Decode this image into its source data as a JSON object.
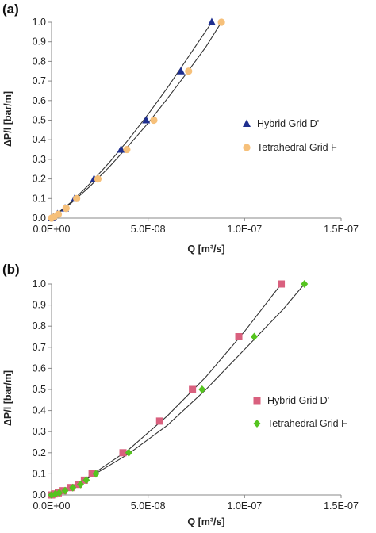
{
  "chart_data": [
    {
      "type": "scatter",
      "panel_label": "(a)",
      "xlabel": "Q [m³/s]",
      "ylabel": "ΔP/l [bar/m]",
      "xlim": [
        0,
        1.5e-07
      ],
      "ylim": [
        0,
        1.0
      ],
      "x_ticks": [
        "0.0E+00",
        "5.0E-08",
        "1.0E-07",
        "1.5E-07"
      ],
      "y_ticks": [
        "0.0",
        "0.1",
        "0.2",
        "0.3",
        "0.4",
        "0.5",
        "0.6",
        "0.7",
        "0.8",
        "0.9",
        "1.0"
      ],
      "grid": false,
      "legend_position": "right",
      "series": [
        {
          "name": "Hybrid Grid D'",
          "marker": "triangle",
          "color": "#1f2f8f",
          "points": [
            [
              0,
              0
            ],
            [
              1e-09,
              0.005
            ],
            [
              3e-09,
              0.02
            ],
            [
              7e-09,
              0.05
            ],
            [
              1.2e-08,
              0.1
            ],
            [
              2.2e-08,
              0.2
            ],
            [
              3.6e-08,
              0.35
            ],
            [
              4.9e-08,
              0.5
            ],
            [
              6.7e-08,
              0.75
            ],
            [
              8.3e-08,
              1.0
            ]
          ]
        },
        {
          "name": "Tetrahedral Grid F",
          "marker": "circle",
          "color": "#f6c07a",
          "points": [
            [
              0,
              0
            ],
            [
              1.2e-09,
              0.005
            ],
            [
              3.5e-09,
              0.02
            ],
            [
              7.5e-09,
              0.05
            ],
            [
              1.3e-08,
              0.1
            ],
            [
              2.4e-08,
              0.2
            ],
            [
              3.9e-08,
              0.35
            ],
            [
              5.3e-08,
              0.5
            ],
            [
              7.1e-08,
              0.75
            ],
            [
              8.8e-08,
              1.0
            ]
          ]
        }
      ],
      "fit_curves": [
        {
          "points": [
            [
              0,
              0
            ],
            [
              1e-08,
              0.08
            ],
            [
              2e-08,
              0.177
            ],
            [
              3e-08,
              0.285
            ],
            [
              4e-08,
              0.402
            ],
            [
              5e-08,
              0.53
            ],
            [
              6e-08,
              0.665
            ],
            [
              7e-08,
              0.81
            ],
            [
              8.3e-08,
              1.0
            ]
          ]
        },
        {
          "points": [
            [
              0,
              0
            ],
            [
              1e-08,
              0.075
            ],
            [
              2e-08,
              0.163
            ],
            [
              3e-08,
              0.262
            ],
            [
              4e-08,
              0.371
            ],
            [
              5e-08,
              0.485
            ],
            [
              6e-08,
              0.61
            ],
            [
              7e-08,
              0.74
            ],
            [
              8e-08,
              0.875
            ],
            [
              8.8e-08,
              1.0
            ]
          ]
        }
      ]
    },
    {
      "type": "scatter",
      "panel_label": "(b)",
      "xlabel": "Q [m³/s]",
      "ylabel": "ΔP/l [bar/m]",
      "xlim": [
        0,
        1.5e-07
      ],
      "ylim": [
        0,
        1.0
      ],
      "x_ticks": [
        "0.0E+00",
        "5.0E-08",
        "1.0E-07",
        "1.5E-07"
      ],
      "y_ticks": [
        "0.0",
        "0.1",
        "0.2",
        "0.3",
        "0.4",
        "0.5",
        "0.6",
        "0.7",
        "0.8",
        "0.9",
        "1.0"
      ],
      "grid": false,
      "legend_position": "right",
      "series": [
        {
          "name": "Hybrid Grid D'",
          "marker": "square",
          "color": "#d9607e",
          "points": [
            [
              0,
              0
            ],
            [
              1.5e-09,
              0.005
            ],
            [
              3.5e-09,
              0.01
            ],
            [
              6e-09,
              0.02
            ],
            [
              1e-08,
              0.035
            ],
            [
              1.4e-08,
              0.05
            ],
            [
              1.7e-08,
              0.07
            ],
            [
              2.1e-08,
              0.1
            ],
            [
              3.7e-08,
              0.2
            ],
            [
              5.6e-08,
              0.35
            ],
            [
              7.3e-08,
              0.5
            ],
            [
              9.7e-08,
              0.75
            ],
            [
              1.19e-07,
              1.0
            ]
          ]
        },
        {
          "name": "Tetrahedral Grid F",
          "marker": "diamond",
          "color": "#55c41f",
          "points": [
            [
              0,
              0
            ],
            [
              2e-09,
              0.005
            ],
            [
              4e-09,
              0.01
            ],
            [
              7e-09,
              0.02
            ],
            [
              1.1e-08,
              0.035
            ],
            [
              1.5e-08,
              0.05
            ],
            [
              1.8e-08,
              0.07
            ],
            [
              2.3e-08,
              0.1
            ],
            [
              4e-08,
              0.2
            ],
            [
              7.8e-08,
              0.5
            ],
            [
              1.05e-07,
              0.75
            ],
            [
              1.31e-07,
              1.0
            ]
          ]
        }
      ],
      "fit_curves": [
        {
          "points": [
            [
              0,
              0
            ],
            [
              1e-08,
              0.038
            ],
            [
              2e-08,
              0.09
            ],
            [
              4e-08,
              0.215
            ],
            [
              6e-08,
              0.375
            ],
            [
              8e-08,
              0.56
            ],
            [
              1e-07,
              0.775
            ],
            [
              1.19e-07,
              1.0
            ]
          ]
        },
        {
          "points": [
            [
              0,
              0
            ],
            [
              1e-08,
              0.035
            ],
            [
              2e-08,
              0.085
            ],
            [
              4e-08,
              0.195
            ],
            [
              6e-08,
              0.33
            ],
            [
              8e-08,
              0.5
            ],
            [
              1e-07,
              0.69
            ],
            [
              1.2e-07,
              0.88
            ],
            [
              1.31e-07,
              1.0
            ]
          ]
        }
      ]
    }
  ]
}
